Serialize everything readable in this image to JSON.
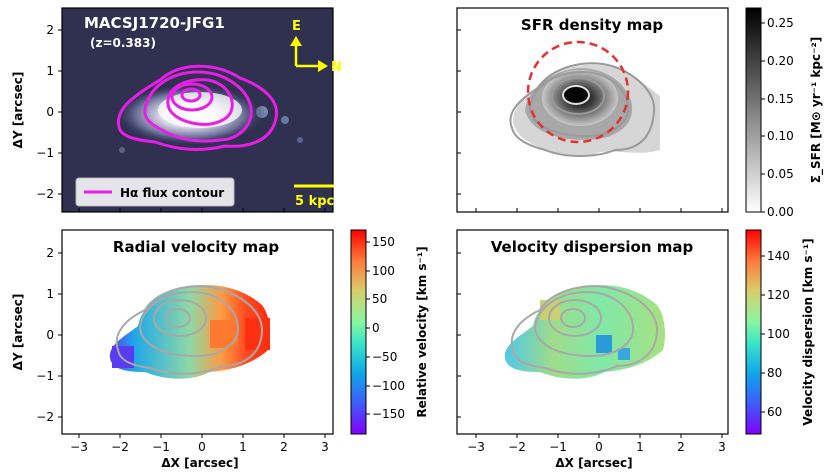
{
  "figure": {
    "panel_a": {
      "target": "MACSJ1720-JFG1",
      "redshift": "(z=0.383)",
      "compass_e": "E",
      "compass_n": "N",
      "legend": "Hα flux contour",
      "scale_bar": "5 kpc"
    },
    "panel_b": {
      "title": "SFR density map",
      "colorbar_label": "Σ_SFR [M⊙ yr⁻¹ kpc⁻²]",
      "cb_ticks": [
        "0.00",
        "0.05",
        "0.10",
        "0.15",
        "0.20",
        "0.25"
      ]
    },
    "panel_c": {
      "title": "Radial velocity map",
      "colorbar_label": "Relative velocity [km s⁻¹]",
      "cb_ticks": [
        "−150",
        "−100",
        "−50",
        "0",
        "50",
        "100",
        "150"
      ]
    },
    "panel_d": {
      "title": "Velocity dispersion map",
      "colorbar_label": "Velocity dispersion [km s⁻¹]",
      "cb_ticks": [
        "60",
        "80",
        "100",
        "120",
        "140"
      ]
    },
    "axes": {
      "xlabel": "ΔX [arcsec]",
      "ylabel": "ΔY [arcsec]",
      "xticks": [
        "−3",
        "−2",
        "−1",
        "0",
        "1",
        "2",
        "3"
      ],
      "yticks": [
        "2",
        "1",
        "0",
        "−1",
        "−2"
      ]
    },
    "colors": {
      "contour": "#e61ee6",
      "annotation": "#ffff00",
      "sfr_circle": "#e53030",
      "gray_contour": "#9a9a9a"
    }
  },
  "chart_data": [
    {
      "type": "heatmap",
      "title": "SFR density map",
      "xlim": [
        -3.3,
        3.3
      ],
      "ylim": [
        -2.5,
        2.5
      ],
      "colorbar": {
        "label": "Σ_SFR [M⊙ yr⁻¹ kpc⁻²]",
        "range": [
          0,
          0.27
        ],
        "ticks": [
          0,
          0.05,
          0.1,
          0.15,
          0.2,
          0.25
        ]
      },
      "peak": {
        "x": -0.6,
        "y": 0.4,
        "value": 0.27
      }
    },
    {
      "type": "heatmap",
      "title": "Radial velocity map",
      "xlabel": "ΔX [arcsec]",
      "ylabel": "ΔY [arcsec]",
      "xlim": [
        -3.3,
        3.3
      ],
      "ylim": [
        -2.5,
        2.5
      ],
      "colorbar": {
        "label": "Relative velocity [km s⁻¹]",
        "range": [
          -180,
          160
        ],
        "ticks": [
          -150,
          -100,
          -50,
          0,
          50,
          100,
          150
        ]
      }
    },
    {
      "type": "heatmap",
      "title": "Velocity dispersion map",
      "xlabel": "ΔX [arcsec]",
      "xlim": [
        -3.3,
        3.3
      ],
      "ylim": [
        -2.5,
        2.5
      ],
      "colorbar": {
        "label": "Velocity dispersion [km s⁻¹]",
        "range": [
          50,
          150
        ],
        "ticks": [
          60,
          80,
          100,
          120,
          140
        ]
      }
    }
  ]
}
